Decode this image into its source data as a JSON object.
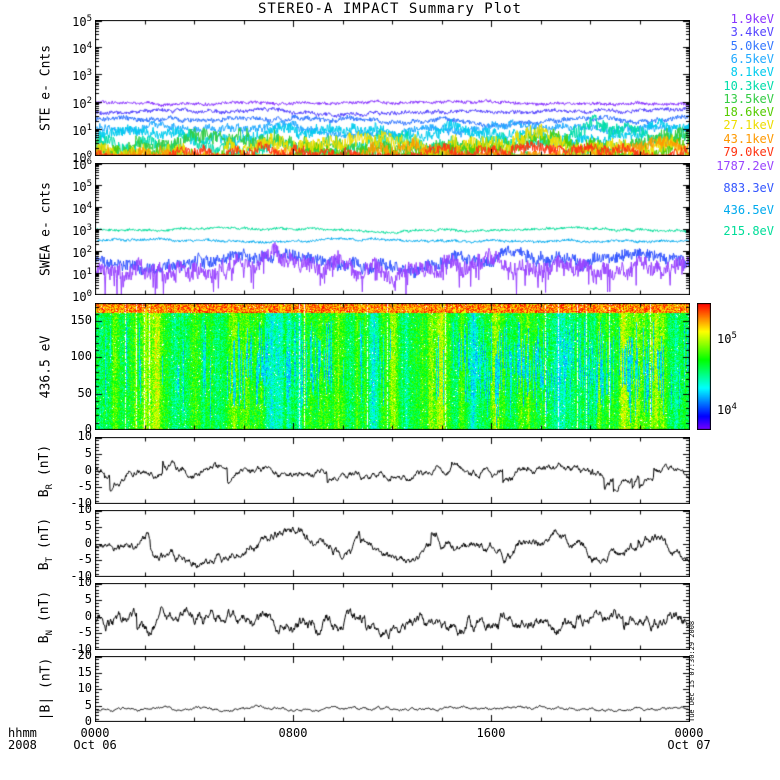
{
  "title": "STEREO-A IMPACT Summary Plot",
  "timestamp": "Tue Dec 15 07:30:29 2008",
  "xaxis": {
    "unit_label": "hhmm",
    "year": "2008",
    "ticks": [
      {
        "time": "0000",
        "date": "Oct 06",
        "frac": 0
      },
      {
        "time": "0800",
        "date": "",
        "frac": 0.33333
      },
      {
        "time": "1600",
        "date": "",
        "frac": 0.66667
      },
      {
        "time": "0000",
        "date": "Oct 07",
        "frac": 1
      }
    ]
  },
  "legend": {
    "ste_entries": [
      {
        "label": "1.9keV",
        "color": "#8833ff"
      },
      {
        "label": "3.4keV",
        "color": "#5544ff"
      },
      {
        "label": "5.0keV",
        "color": "#3377ff"
      },
      {
        "label": "6.5keV",
        "color": "#22aaff"
      },
      {
        "label": "8.1keV",
        "color": "#00ccee"
      },
      {
        "label": "10.3keV",
        "color": "#00ddaa"
      },
      {
        "label": "13.5keV",
        "color": "#33cc44"
      },
      {
        "label": "18.6keV",
        "color": "#55cc00"
      },
      {
        "label": "27.1keV",
        "color": "#eedd00"
      },
      {
        "label": "43.1keV",
        "color": "#ff9900"
      },
      {
        "label": "79.0keV",
        "color": "#ff3311"
      }
    ],
    "swea_entries": [
      {
        "label": "1787.2eV",
        "color": "#9944ff"
      },
      {
        "label": "883.3eV",
        "color": "#3355ff"
      },
      {
        "label": "436.5eV",
        "color": "#00aaee"
      },
      {
        "label": "215.8eV",
        "color": "#00dd99"
      }
    ]
  },
  "chart_data": [
    {
      "id": "ste",
      "type": "line",
      "ylabel": "STE e- Cnts",
      "yscale": "log",
      "yrange_exp": [
        0,
        5
      ],
      "ytick_labels": [
        "10^0",
        "10^1",
        "10^2",
        "10^3",
        "10^4",
        "10^5"
      ],
      "series": [
        {
          "name": "1.9keV",
          "color": "#8833ff",
          "level": 90,
          "noise": 0.1
        },
        {
          "name": "3.4keV",
          "color": "#5544ff",
          "level": 42,
          "noise": 0.12
        },
        {
          "name": "5.0keV",
          "color": "#3377ff",
          "level": 22,
          "noise": 0.16
        },
        {
          "name": "6.5keV",
          "color": "#22aaff",
          "level": 11,
          "noise": 0.26
        },
        {
          "name": "8.1keV",
          "color": "#00ccee",
          "level": 6.5,
          "noise": 0.36
        },
        {
          "name": "10.3keV",
          "color": "#00ddaa",
          "level": 4.0,
          "noise": 0.46
        },
        {
          "name": "13.5keV",
          "color": "#33cc44",
          "level": 2.8,
          "noise": 0.52
        },
        {
          "name": "18.6keV",
          "color": "#55cc00",
          "level": 2.0,
          "noise": 0.55
        },
        {
          "name": "27.1keV",
          "color": "#eedd00",
          "level": 1.35,
          "noise": 0.5
        },
        {
          "name": "43.1keV",
          "color": "#ff9900",
          "level": 1.15,
          "noise": 0.42
        },
        {
          "name": "79.0keV",
          "color": "#ff3311",
          "level": 1.05,
          "noise": 0.35
        }
      ]
    },
    {
      "id": "swea",
      "type": "line",
      "ylabel": "SWEA e- cnts",
      "yscale": "log",
      "yrange_exp": [
        0,
        6
      ],
      "ytick_labels": [
        "10^0",
        "10^1",
        "10^2",
        "10^3",
        "10^4",
        "10^5",
        "10^6"
      ],
      "series": [
        {
          "name": "215.8eV",
          "color": "#00dd99",
          "level": 950,
          "noise": 0.1
        },
        {
          "name": "436.5eV",
          "color": "#00aaee",
          "level": 270,
          "noise": 0.1
        },
        {
          "name": "883.3eV",
          "color": "#3355ff",
          "level": 30,
          "noise": 0.5
        },
        {
          "name": "1787.2eV",
          "color": "#9944ff",
          "level": 11,
          "noise": 0.7,
          "downspike": true
        }
      ]
    },
    {
      "id": "swea-spectrogram",
      "type": "heatmap",
      "ylabel": "436.5 eV",
      "yrange": [
        0,
        175
      ],
      "yticks": [
        0,
        50,
        100,
        150
      ],
      "yminor": 10,
      "colorbar": {
        "scale": "log",
        "tick_labels": [
          "10^4",
          "10^5"
        ],
        "tick_exps": [
          4,
          5
        ],
        "range_exp": [
          3.7,
          5.5
        ]
      },
      "low_flux_intervals_frac": [
        [
          0.22,
          0.4
        ],
        [
          0.6,
          0.95
        ]
      ]
    },
    {
      "id": "br",
      "type": "line",
      "ylabel": "B_R (nT)",
      "yrange": [
        -10,
        10
      ],
      "yticks": [
        -10,
        -5,
        0,
        5,
        10
      ],
      "yminor": 1,
      "series": [
        {
          "name": "BR",
          "color": "#000000",
          "mean": 0,
          "step": 1.3,
          "revert": 0.05,
          "spike": 9
        }
      ]
    },
    {
      "id": "bt",
      "type": "line",
      "ylabel": "B_T (nT)",
      "yrange": [
        -10,
        10
      ],
      "yticks": [
        -10,
        -5,
        0,
        5,
        10
      ],
      "yminor": 1,
      "series": [
        {
          "name": "BT",
          "color": "#000000",
          "mean": -1,
          "step": 1.7,
          "revert": 0.012,
          "spike": 6
        }
      ]
    },
    {
      "id": "bn",
      "type": "line",
      "ylabel": "B_N (nT)",
      "yrange": [
        -10,
        10
      ],
      "yticks": [
        -10,
        -5,
        0,
        5,
        10
      ],
      "yminor": 1,
      "series": [
        {
          "name": "BN",
          "color": "#000000",
          "mean": -1,
          "step": 2.2,
          "revert": 0.05,
          "spike": 7
        }
      ]
    },
    {
      "id": "bmag",
      "type": "line",
      "ylabel": "|B| (nT)",
      "yrange": [
        0,
        20
      ],
      "yticks": [
        0,
        5,
        10,
        15,
        20
      ],
      "yminor": 1,
      "series": [
        {
          "name": "Bmag",
          "color": "#000000",
          "mean": 4,
          "step": 0.5,
          "revert": 0.04
        }
      ]
    }
  ]
}
